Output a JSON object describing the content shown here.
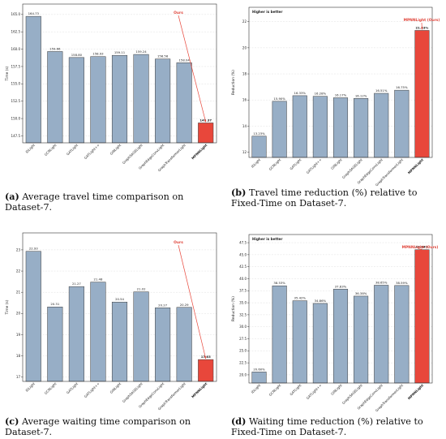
{
  "colors": {
    "bar": "#97aec6",
    "highlight": "#e8473b",
    "edge": "#3a3a3a",
    "grid": "#d8d8d8"
  },
  "captions": [
    {
      "label": "(a)",
      "text": " Average travel time comparison on Dataset-7."
    },
    {
      "label": "(b)",
      "text": " Travel time reduction (%) relative to Fixed-Time on Dataset-7."
    },
    {
      "label": "(c)",
      "text": " Average waiting time comparison on Dataset-7."
    },
    {
      "label": "(d)",
      "text": " Waiting time reduction (%) relative to Fixed-Time on Dataset-7."
    }
  ],
  "chart_data": [
    {
      "type": "bar",
      "categories": [
        "IDLight",
        "GCNLight",
        "GATLight",
        "GATLight++",
        "GINLight",
        "GraphSAGELight",
        "GraphEdgeConvLight",
        "GraphTransformerLight",
        "MPNNLight"
      ],
      "values": [
        164.73,
        159.66,
        158.8,
        158.93,
        159.11,
        159.24,
        158.58,
        158.04,
        149.37
      ],
      "value_labels": [
        "164.73",
        "159.66",
        "158.80",
        "158.93",
        "159.11",
        "159.24",
        "158.58",
        "158.04",
        "149.37"
      ],
      "highlight_index": 8,
      "annotation": "Ours",
      "note": "",
      "xlabel": "",
      "ylabel": "Time (s)",
      "ylim": [
        146.5,
        166.5
      ],
      "yticks": [
        147.5,
        150.0,
        152.5,
        155.0,
        157.5,
        160.0,
        162.5,
        165.0
      ],
      "ytick_labels": [
        "147.5",
        "150.0",
        "152.5",
        "155.0",
        "157.5",
        "160.0",
        "162.5",
        "165.0"
      ],
      "grid": true
    },
    {
      "type": "bar",
      "categories": [
        "IDLight",
        "GCNLight",
        "GATLight",
        "GATLight++",
        "GINLight",
        "GraphSAGELight",
        "GraphEdgeConvLight",
        "GraphTransformerLight",
        "MPNNLight"
      ],
      "values": [
        13.23,
        15.9,
        16.33,
        16.28,
        16.17,
        16.12,
        16.51,
        16.75,
        21.33
      ],
      "value_labels": [
        "13.23%",
        "15.90%",
        "16.33%",
        "16.28%",
        "16.17%",
        "16.12%",
        "16.51%",
        "16.75%",
        "21.33%"
      ],
      "highlight_index": 8,
      "annotation": "MPNNLight (Ours)",
      "note": "Higher is better",
      "xlabel": "",
      "ylabel": "Reduction (%)",
      "ylim": [
        11.6,
        23.1
      ],
      "yticks": [
        12,
        14,
        16,
        18,
        20,
        22
      ],
      "ytick_labels": [
        "12",
        "14",
        "16",
        "18",
        "20",
        "22"
      ],
      "grid": true
    },
    {
      "type": "bar",
      "categories": [
        "IDLight",
        "GCNLight",
        "GATLight",
        "GATLight++",
        "GINLight",
        "GraphSAGELight",
        "GraphEdgeConvLight",
        "GraphTransformerLight",
        "MPNNLight"
      ],
      "values": [
        22.93,
        20.31,
        21.27,
        21.48,
        20.54,
        21.02,
        20.27,
        20.29,
        17.83
      ],
      "value_labels": [
        "22.93",
        "20.31",
        "21.27",
        "21.48",
        "20.54",
        "21.02",
        "20.27",
        "20.29",
        "17.83"
      ],
      "highlight_index": 8,
      "annotation": "Ours",
      "note": "",
      "xlabel": "",
      "ylabel": "Time (s)",
      "ylim": [
        16.8,
        23.8
      ],
      "yticks": [
        17,
        18,
        19,
        20,
        21,
        22,
        23
      ],
      "ytick_labels": [
        "17",
        "18",
        "19",
        "20",
        "21",
        "22",
        "23"
      ],
      "grid": true
    },
    {
      "type": "bar",
      "categories": [
        "IDLight",
        "GCNLight",
        "GATLight",
        "GATLight++",
        "GINLight",
        "GraphSAGELight",
        "GraphEdgeConvLight",
        "GraphTransformerLight",
        "MPNNLight"
      ],
      "values": [
        20.6,
        38.53,
        35.42,
        34.86,
        37.83,
        36.38,
        38.65,
        38.59,
        46.04
      ],
      "value_labels": [
        "20.60%",
        "38.53%",
        "35.42%",
        "34.86%",
        "37.83%",
        "36.38%",
        "38.65%",
        "38.59%",
        "46.04%"
      ],
      "highlight_index": 8,
      "annotation": "MPNNLight (Ours)",
      "note": "Higher is better",
      "xlabel": "",
      "ylabel": "Reduction (%)",
      "ylim": [
        18.3,
        49.2
      ],
      "yticks": [
        20.0,
        22.5,
        25.0,
        27.5,
        30.0,
        32.5,
        35.0,
        37.5,
        40.0,
        42.5,
        45.0,
        47.5
      ],
      "ytick_labels": [
        "20.0",
        "22.5",
        "25.0",
        "27.5",
        "30.0",
        "32.5",
        "35.0",
        "37.5",
        "40.0",
        "42.5",
        "45.0",
        "47.5"
      ],
      "grid": true
    }
  ]
}
